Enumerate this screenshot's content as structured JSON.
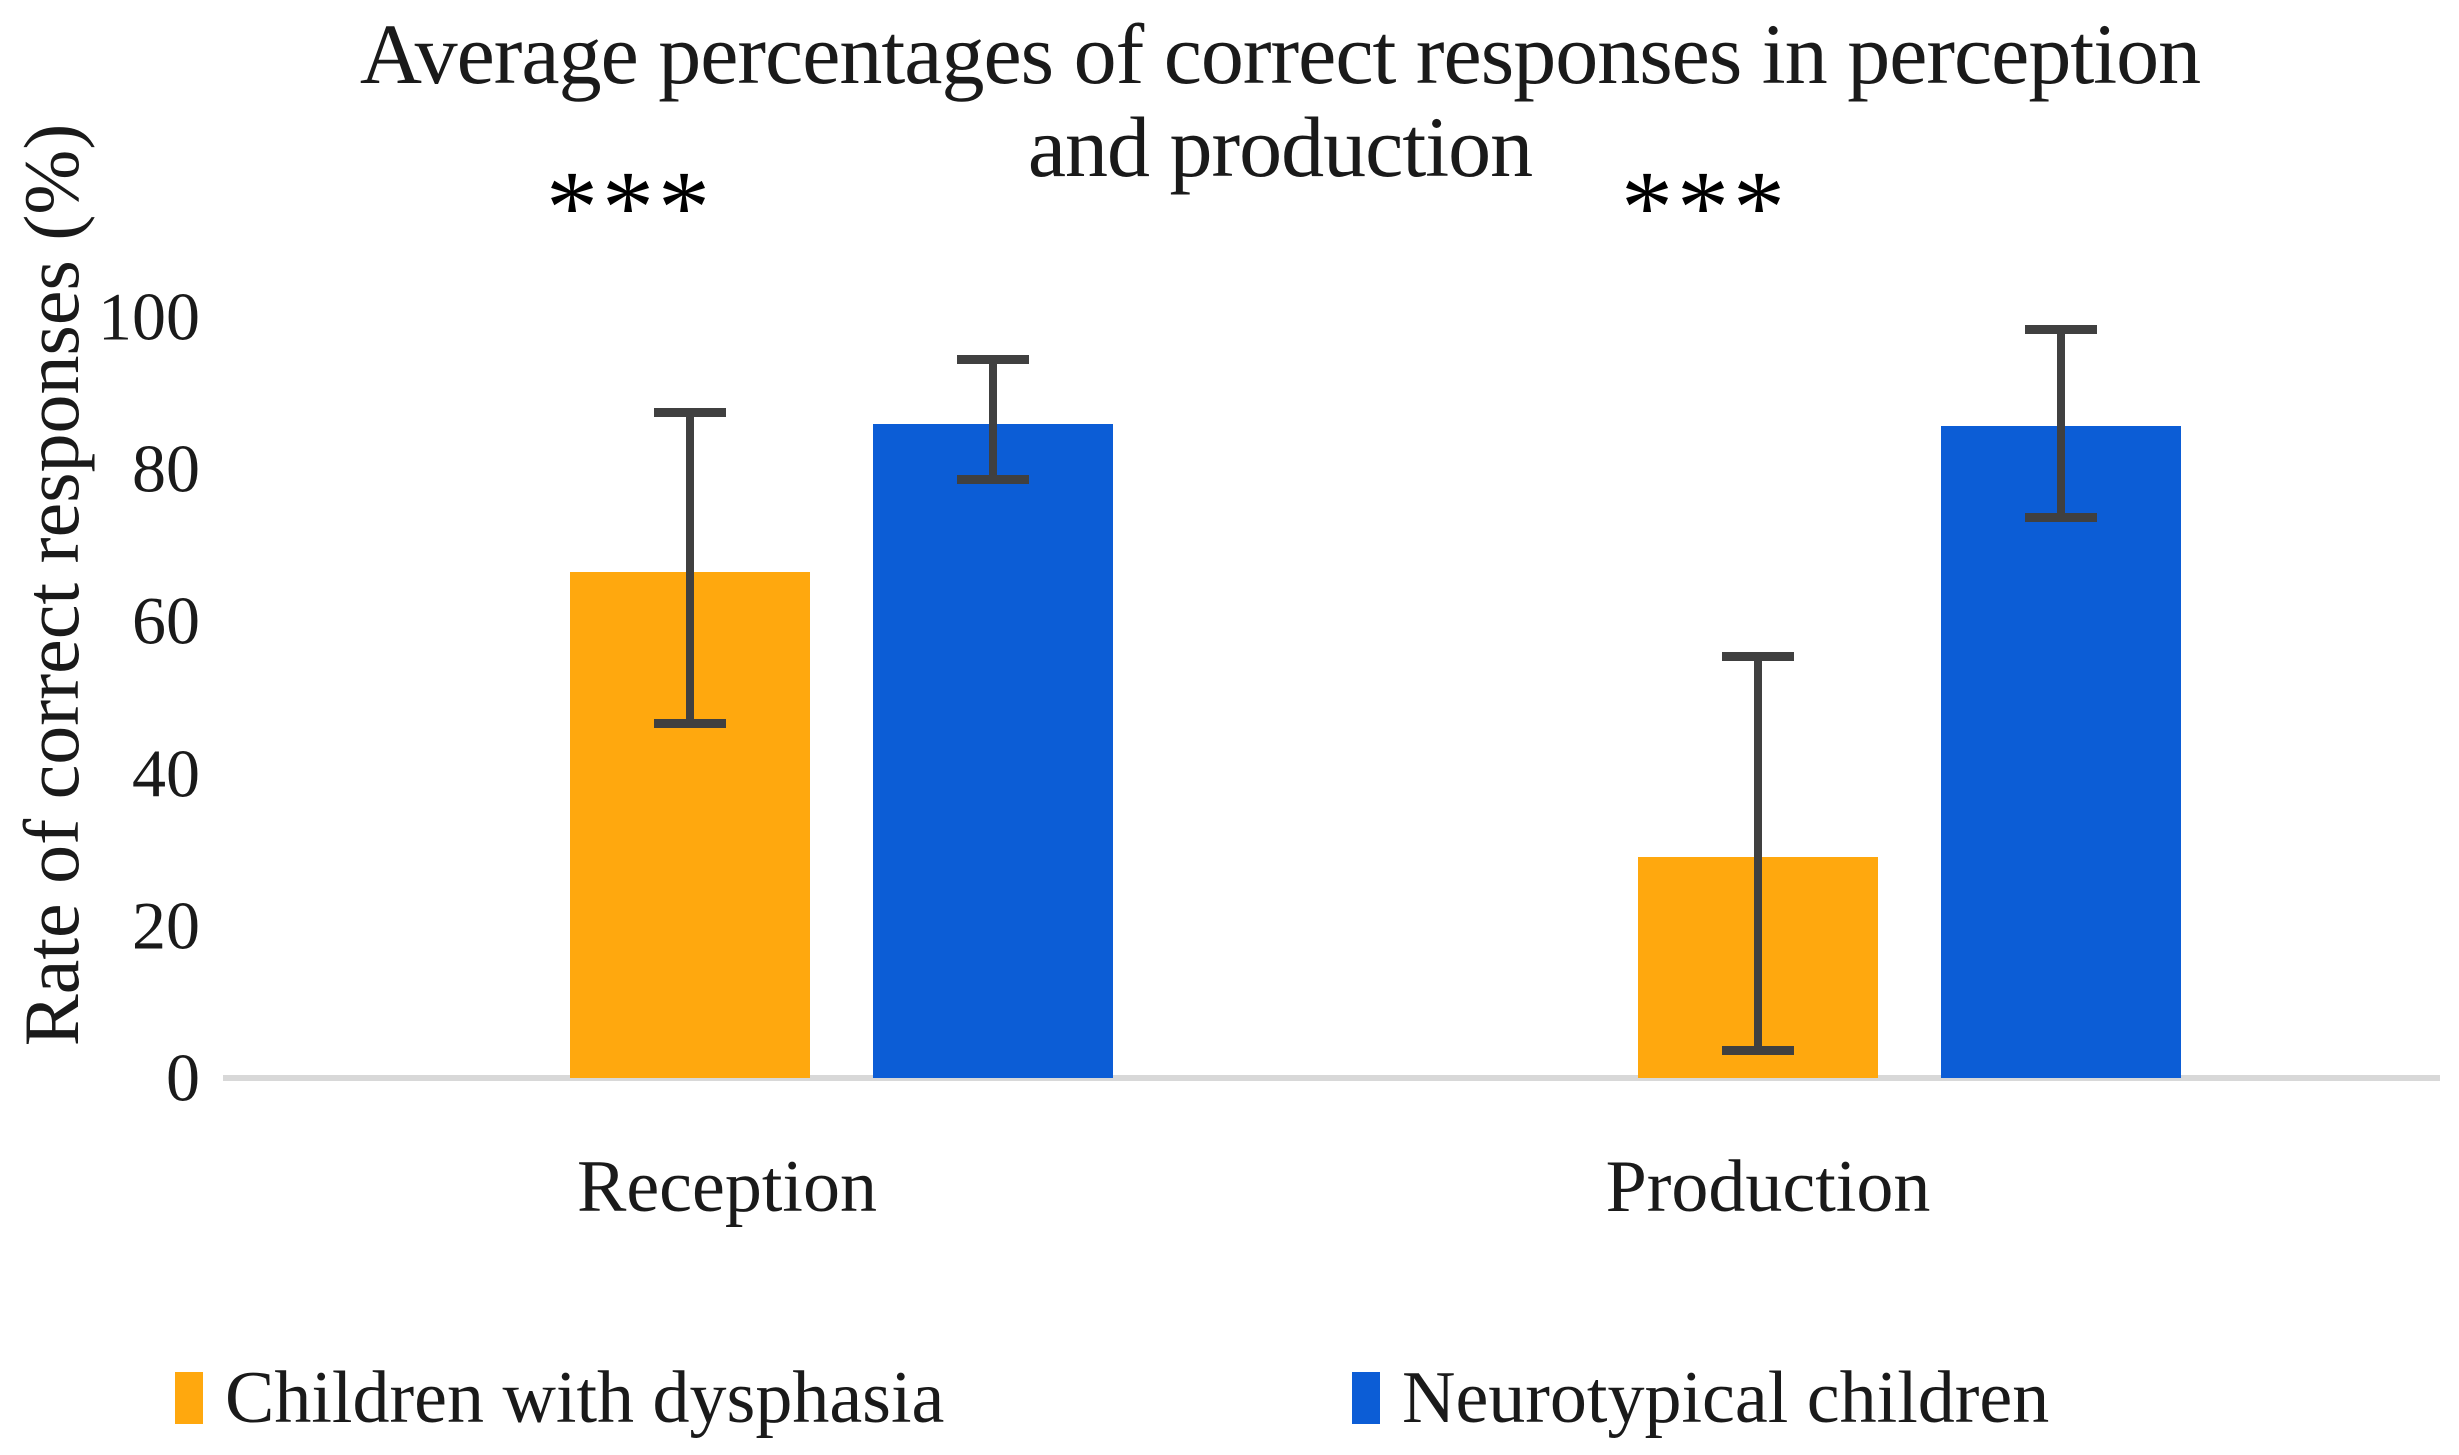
{
  "title": {
    "line1": "Average percentages of correct responses in perception",
    "line2": "and production"
  },
  "colors": {
    "dysphasia_orange": "#FFA80E",
    "neurotypical_blue": "#0C5DD6",
    "error_bar": "#404040",
    "axis_line": "#D8D8D8",
    "text": "#1A1A1A"
  },
  "chart_data": {
    "type": "bar",
    "title": "Average percentages of correct responses in perception and production",
    "ylabel": "Rate of correct responses (%)",
    "xlabel": "",
    "ylim": [
      0,
      100
    ],
    "yticks": [
      0,
      20,
      40,
      60,
      80,
      100
    ],
    "categories": [
      "Reception",
      "Production"
    ],
    "series": [
      {
        "name": "Children with dysphasia",
        "color": "#FFA80E",
        "values": [
          66.5,
          29
        ],
        "error_low": [
          46,
          3
        ],
        "error_high": [
          88,
          56
        ]
      },
      {
        "name": "Neurotypical children",
        "color": "#0C5DD6",
        "values": [
          86,
          85.7
        ],
        "error_low": [
          78,
          73
        ],
        "error_high": [
          95,
          99
        ]
      }
    ],
    "annotations": [
      {
        "text": "***",
        "category": "Reception"
      },
      {
        "text": "***",
        "category": "Production"
      }
    ],
    "error_bars": true,
    "grid": false,
    "legend_position": "bottom"
  }
}
